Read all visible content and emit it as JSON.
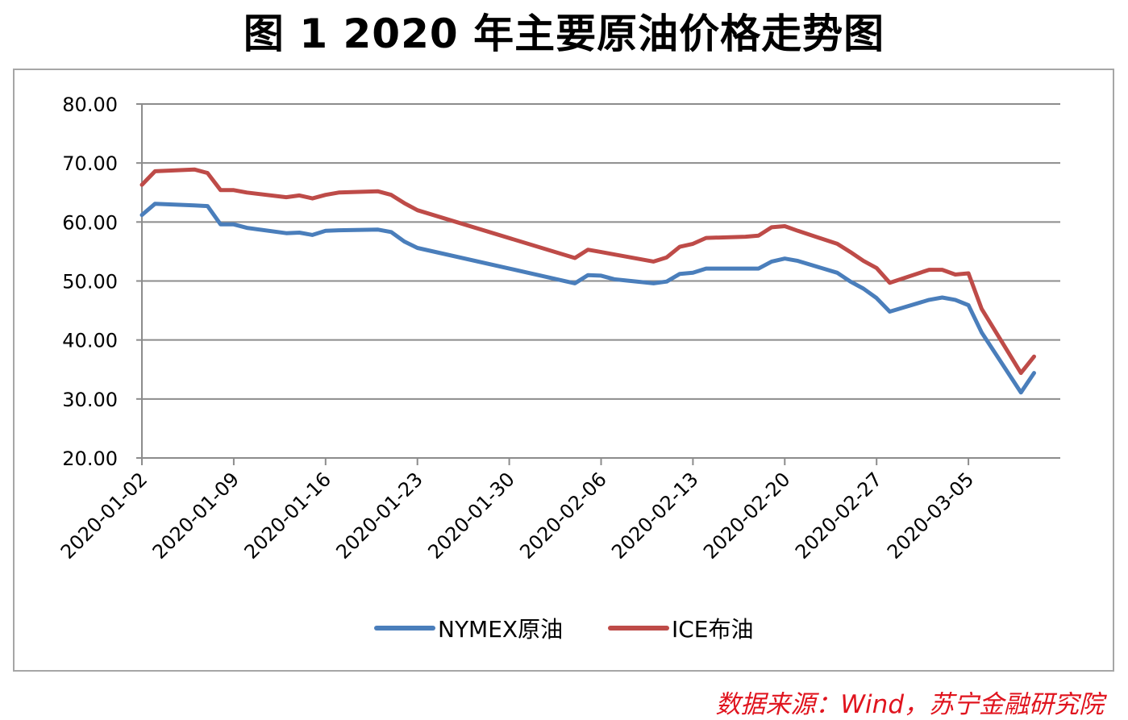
{
  "title": "图 1  2020 年主要原油价格走势图",
  "source": "数据来源：Wind，苏宁金融研究院",
  "chart_data": {
    "type": "line",
    "ylim": [
      20,
      80
    ],
    "y_ticks": [
      "20.00",
      "30.00",
      "40.00",
      "50.00",
      "60.00",
      "70.00",
      "80.00"
    ],
    "x_range": [
      "2020-01-02",
      "2020-03-12"
    ],
    "x_ticks": [
      "2020-01-02",
      "2020-01-09",
      "2020-01-16",
      "2020-01-23",
      "2020-01-30",
      "2020-02-06",
      "2020-02-13",
      "2020-02-20",
      "2020-02-27",
      "2020-03-05"
    ],
    "legend_position": "bottom",
    "series": [
      {
        "name": "NYMEX原油",
        "color": "#4a7ebb",
        "points": [
          [
            "2020-01-02",
            61.2
          ],
          [
            "2020-01-03",
            63.1
          ],
          [
            "2020-01-06",
            62.8
          ],
          [
            "2020-01-07",
            62.7
          ],
          [
            "2020-01-08",
            59.6
          ],
          [
            "2020-01-09",
            59.6
          ],
          [
            "2020-01-10",
            59.0
          ],
          [
            "2020-01-13",
            58.1
          ],
          [
            "2020-01-14",
            58.2
          ],
          [
            "2020-01-15",
            57.8
          ],
          [
            "2020-01-16",
            58.5
          ],
          [
            "2020-01-17",
            58.6
          ],
          [
            "2020-01-20",
            58.7
          ],
          [
            "2020-01-21",
            58.3
          ],
          [
            "2020-01-22",
            56.7
          ],
          [
            "2020-01-23",
            55.6
          ],
          [
            "2020-02-04",
            49.6
          ],
          [
            "2020-02-05",
            51.0
          ],
          [
            "2020-02-06",
            50.9
          ],
          [
            "2020-02-07",
            50.3
          ],
          [
            "2020-02-10",
            49.6
          ],
          [
            "2020-02-11",
            49.9
          ],
          [
            "2020-02-12",
            51.2
          ],
          [
            "2020-02-13",
            51.4
          ],
          [
            "2020-02-14",
            52.1
          ],
          [
            "2020-02-17",
            52.1
          ],
          [
            "2020-02-18",
            52.1
          ],
          [
            "2020-02-19",
            53.3
          ],
          [
            "2020-02-20",
            53.8
          ],
          [
            "2020-02-21",
            53.4
          ],
          [
            "2020-02-24",
            51.4
          ],
          [
            "2020-02-25",
            49.9
          ],
          [
            "2020-02-26",
            48.7
          ],
          [
            "2020-02-27",
            47.1
          ],
          [
            "2020-02-28",
            44.8
          ],
          [
            "2020-03-02",
            46.8
          ],
          [
            "2020-03-03",
            47.2
          ],
          [
            "2020-03-04",
            46.8
          ],
          [
            "2020-03-05",
            45.9
          ],
          [
            "2020-03-06",
            41.3
          ],
          [
            "2020-03-09",
            31.1
          ],
          [
            "2020-03-10",
            34.4
          ]
        ]
      },
      {
        "name": "ICE布油",
        "color": "#be4b48",
        "points": [
          [
            "2020-01-02",
            66.3
          ],
          [
            "2020-01-03",
            68.6
          ],
          [
            "2020-01-06",
            68.9
          ],
          [
            "2020-01-07",
            68.3
          ],
          [
            "2020-01-08",
            65.4
          ],
          [
            "2020-01-09",
            65.4
          ],
          [
            "2020-01-10",
            65.0
          ],
          [
            "2020-01-13",
            64.2
          ],
          [
            "2020-01-14",
            64.5
          ],
          [
            "2020-01-15",
            64.0
          ],
          [
            "2020-01-16",
            64.6
          ],
          [
            "2020-01-17",
            65.0
          ],
          [
            "2020-01-20",
            65.2
          ],
          [
            "2020-01-21",
            64.6
          ],
          [
            "2020-01-22",
            63.2
          ],
          [
            "2020-01-23",
            62.0
          ],
          [
            "2020-02-04",
            53.9
          ],
          [
            "2020-02-05",
            55.3
          ],
          [
            "2020-02-06",
            54.9
          ],
          [
            "2020-02-07",
            54.5
          ],
          [
            "2020-02-10",
            53.3
          ],
          [
            "2020-02-11",
            54.0
          ],
          [
            "2020-02-12",
            55.8
          ],
          [
            "2020-02-13",
            56.3
          ],
          [
            "2020-02-14",
            57.3
          ],
          [
            "2020-02-17",
            57.5
          ],
          [
            "2020-02-18",
            57.7
          ],
          [
            "2020-02-19",
            59.1
          ],
          [
            "2020-02-20",
            59.3
          ],
          [
            "2020-02-21",
            58.5
          ],
          [
            "2020-02-24",
            56.3
          ],
          [
            "2020-02-25",
            54.9
          ],
          [
            "2020-02-26",
            53.4
          ],
          [
            "2020-02-27",
            52.2
          ],
          [
            "2020-02-28",
            49.7
          ],
          [
            "2020-03-02",
            51.9
          ],
          [
            "2020-03-03",
            51.9
          ],
          [
            "2020-03-04",
            51.1
          ],
          [
            "2020-03-05",
            51.3
          ],
          [
            "2020-03-06",
            45.3
          ],
          [
            "2020-03-09",
            34.4
          ],
          [
            "2020-03-10",
            37.2
          ]
        ]
      }
    ]
  }
}
